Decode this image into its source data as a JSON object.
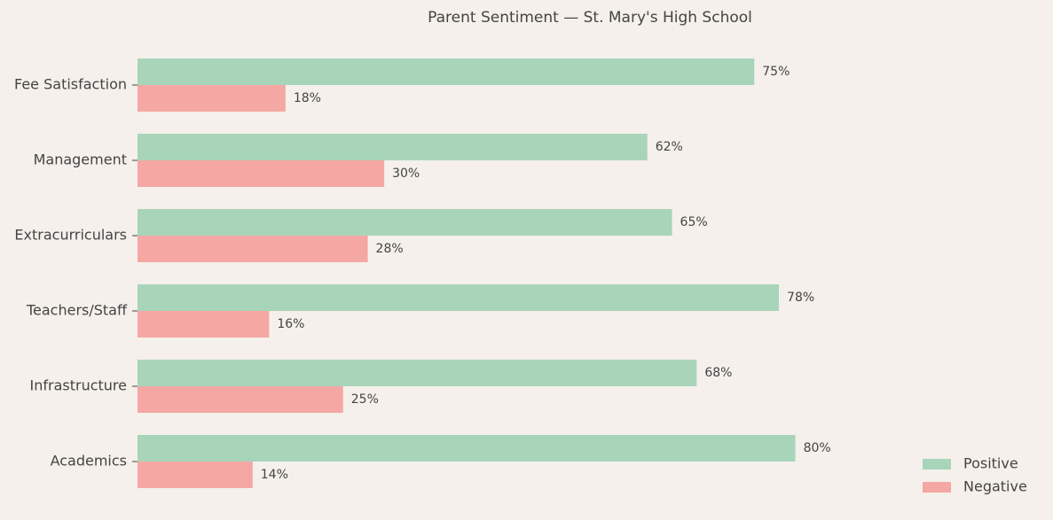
{
  "chart_data": {
    "type": "barh",
    "title": "Parent Sentiment — St. Mary's High School",
    "categories": [
      "Academics",
      "Infrastructure",
      "Teachers/Staff",
      "Extracurriculars",
      "Management",
      "Fee Satisfaction"
    ],
    "series": [
      {
        "name": "Positive",
        "color": "#a8d5ba",
        "values": [
          80,
          68,
          78,
          65,
          62,
          75
        ],
        "value_labels": [
          "80%",
          "68%",
          "78%",
          "65%",
          "62%",
          "75%"
        ]
      },
      {
        "name": "Negative",
        "color": "#f4a7a3",
        "values": [
          14,
          25,
          16,
          28,
          30,
          18
        ],
        "value_labels": [
          "14%",
          "25%",
          "16%",
          "28%",
          "30%",
          "18%"
        ]
      }
    ],
    "xlim": [
      0,
      100
    ],
    "legend": "lower right"
  }
}
